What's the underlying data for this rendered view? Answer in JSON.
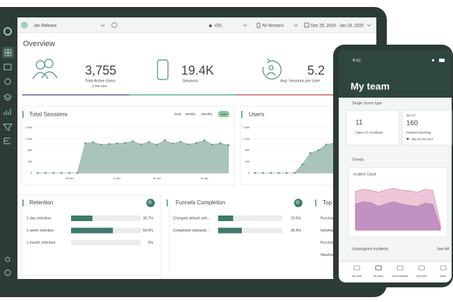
{
  "top_bar": {
    "project": "Jan Release",
    "platform": "iOS",
    "version": "All Versions",
    "date_range": "Dec 25, 2019 - Jan 24, 2020"
  },
  "overview": {
    "title": "Overview",
    "stats": [
      {
        "value": "3,755",
        "label": "Total Active Users",
        "sub": "3,750 New"
      },
      {
        "value": "19.4K",
        "label": "Sessions"
      },
      {
        "value": "5.2",
        "label": "Avg. Sessions per User"
      }
    ]
  },
  "total_sessions": {
    "title": "Total Sessions",
    "toggles": [
      "Daily",
      "Weekly",
      "Monthly",
      "Live"
    ],
    "chart": {
      "type": "area",
      "categories": [
        null,
        null,
        null,
        null,
        "30 Dec",
        null,
        null,
        null,
        null,
        null,
        "6 Jan",
        null,
        null,
        null,
        null,
        "13 Jan",
        null,
        null,
        null,
        null,
        null,
        "20 Jan",
        null,
        null,
        null
      ],
      "values": [
        0,
        0,
        0,
        0,
        0,
        0,
        1050,
        1080,
        1000,
        1020,
        1040,
        1060,
        1120,
        1010,
        1090,
        1000,
        1150,
        1040,
        1100,
        1010,
        1060,
        1150,
        1000,
        1050,
        980
      ],
      "color": "#8fb0a3",
      "ylim": [
        0,
        1600
      ],
      "yticks": [
        0,
        400,
        800,
        {
          "value": 1200,
          "label": "1,200"
        },
        {
          "value": 1600,
          "label": "1,600"
        }
      ]
    }
  },
  "users": {
    "title": "Users",
    "chart": {
      "type": "area",
      "values": [
        0,
        0,
        0,
        0,
        0,
        0,
        300,
        700,
        800,
        1000,
        1050,
        950
      ],
      "color": "#8fb0a3",
      "ylim": [
        0,
        1600
      ],
      "yticks": [
        0,
        400,
        800,
        {
          "value": 1200,
          "label": "1,200"
        },
        {
          "value": 1600,
          "label": "1,600"
        }
      ]
    }
  },
  "retention": {
    "title": "Retention",
    "rows": [
      {
        "label": "1-day retention",
        "value": 30.7,
        "value_label": "30.7%"
      },
      {
        "label": "1-week retention",
        "value": 59.9,
        "value_label": "59.9%"
      },
      {
        "label": "1-month retention",
        "value": 0,
        "value_label": "0%"
      }
    ]
  },
  "funnels": {
    "title": "Funnels Completion",
    "rows": [
      {
        "label": "Changed default sett...",
        "value": 23.5,
        "value_label": "23.5%"
      },
      {
        "label": "Completed onboardi...",
        "value": 36.9,
        "value_label": "36.9%"
      }
    ]
  },
  "top_events": {
    "title": "Top Ev",
    "items": [
      "Purchase",
      "ItemAdde",
      "Purchas",
      "NewUse"
    ]
  },
  "phone": {
    "time": "9:41",
    "title": "My team",
    "score_section": "Single Score type",
    "cards": [
      {
        "value": "11",
        "label": "Open P1 incidents"
      },
      {
        "date": "Oct 17",
        "value": "160",
        "label": "Incident Backlog",
        "change": "-36(-18.4%) Oct"
      }
    ],
    "trends": {
      "title": "Trends",
      "chart": {
        "type": "area",
        "title": "Incident Count",
        "ylim": [
          0,
          100
        ],
        "series": [
          {
            "color": "#e9b8cf",
            "values": [
              82,
              86,
              84,
              80,
              85,
              88,
              84,
              83,
              80,
              86,
              84,
              12
            ]
          },
          {
            "color": "#b583bd",
            "values": [
              55,
              60,
              58,
              50,
              56,
              60,
              55,
              52,
              50,
              57,
              55,
              5
            ]
          }
        ]
      }
    },
    "unassigned": "Unassigned incidents",
    "see_all": "See All",
    "tabs": [
      "My work",
      "My team",
      "Intel incidents",
      "My Work",
      "More"
    ]
  }
}
